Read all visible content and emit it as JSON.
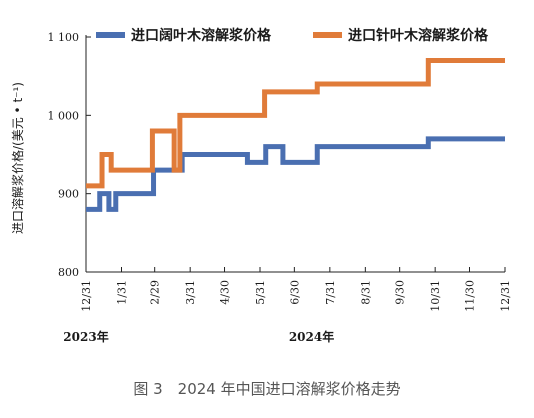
{
  "caption": "图 3　2024 年中国进口溶解浆价格走势",
  "chart_data": {
    "type": "line",
    "title": "",
    "ylabel": "进口溶解浆价格/(美元 • t⁻¹)",
    "ylim": [
      800,
      1100
    ],
    "yticks": [
      800,
      900,
      1000,
      1100
    ],
    "ytick_labels": [
      "800",
      "900",
      "1 000",
      "1 100"
    ],
    "xlim": [
      "2023-12-31",
      "2024-12-31"
    ],
    "xticks": [
      "2023-12-31",
      "2024-01-31",
      "2024-02-29",
      "2024-03-31",
      "2024-04-30",
      "2024-05-31",
      "2024-06-30",
      "2024-07-31",
      "2024-08-31",
      "2024-09-30",
      "2024-10-31",
      "2024-11-30",
      "2024-12-31"
    ],
    "xtick_labels": [
      "12/31",
      "1/31",
      "2/29",
      "3/31",
      "4/30",
      "5/31",
      "6/30",
      "7/31",
      "8/31",
      "9/30",
      "10/31",
      "11/30",
      "12/31"
    ],
    "year_labels": [
      {
        "text": "2023年",
        "date": "2023-12-31"
      },
      {
        "text": "2024年",
        "date": "2024-07-15"
      }
    ],
    "grid": false,
    "legend_position": "top",
    "series": [
      {
        "name": "进口阔叶木溶解浆价格",
        "color": "#4a6fb1",
        "points": [
          [
            "2023-12-31",
            880
          ],
          [
            "2024-01-12",
            880
          ],
          [
            "2024-01-12",
            900
          ],
          [
            "2024-01-20",
            900
          ],
          [
            "2024-01-20",
            880
          ],
          [
            "2024-01-26",
            880
          ],
          [
            "2024-01-26",
            900
          ],
          [
            "2024-02-28",
            900
          ],
          [
            "2024-02-28",
            930
          ],
          [
            "2024-03-24",
            930
          ],
          [
            "2024-03-24",
            950
          ],
          [
            "2024-05-20",
            950
          ],
          [
            "2024-05-20",
            940
          ],
          [
            "2024-06-05",
            940
          ],
          [
            "2024-06-05",
            960
          ],
          [
            "2024-06-20",
            960
          ],
          [
            "2024-06-20",
            940
          ],
          [
            "2024-07-20",
            940
          ],
          [
            "2024-07-20",
            960
          ],
          [
            "2024-10-25",
            960
          ],
          [
            "2024-10-25",
            970
          ],
          [
            "2024-12-31",
            970
          ]
        ]
      },
      {
        "name": "进口针叶木溶解浆价格",
        "color": "#e07b39",
        "points": [
          [
            "2023-12-31",
            910
          ],
          [
            "2024-01-14",
            910
          ],
          [
            "2024-01-14",
            950
          ],
          [
            "2024-01-22",
            950
          ],
          [
            "2024-01-22",
            930
          ],
          [
            "2024-02-27",
            930
          ],
          [
            "2024-02-27",
            980
          ],
          [
            "2024-03-17",
            980
          ],
          [
            "2024-03-17",
            930
          ],
          [
            "2024-03-22",
            930
          ],
          [
            "2024-03-22",
            1000
          ],
          [
            "2024-06-04",
            1000
          ],
          [
            "2024-06-04",
            1030
          ],
          [
            "2024-07-20",
            1030
          ],
          [
            "2024-07-20",
            1040
          ],
          [
            "2024-10-25",
            1040
          ],
          [
            "2024-10-25",
            1070
          ],
          [
            "2024-12-31",
            1070
          ]
        ]
      }
    ]
  }
}
